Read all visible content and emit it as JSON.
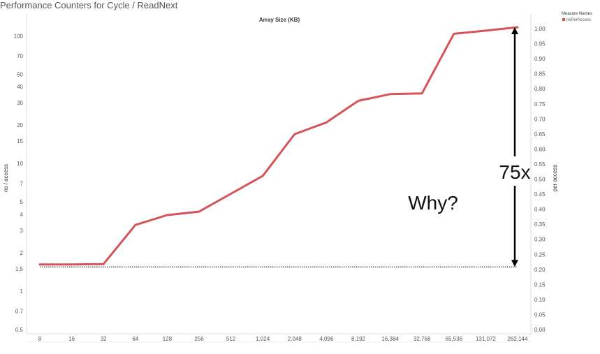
{
  "page_title": "Performance Counters for Cycle / ReadNext",
  "colors": {
    "series": "#d45457",
    "text": "#555555",
    "axis": "#dddddd",
    "annotation": "#111111"
  },
  "chart_data": {
    "type": "line",
    "title": "Performance Counters for Cycle / ReadNext",
    "xlabel": "Array Size (KB)",
    "ylabel": "ns / access",
    "y2label": "per access",
    "y_scale": "log",
    "ylim": [
      0.5,
      120
    ],
    "y2lim": [
      0,
      1.0
    ],
    "grid": false,
    "legend_position": "top-right",
    "legend_title": "Measure Names",
    "categories": [
      "8",
      "16",
      "32",
      "64",
      "128",
      "256",
      "512",
      "1,024",
      "2,048",
      "4,096",
      "8,192",
      "16,384",
      "32,768",
      "65,536",
      "131,072",
      "262,144"
    ],
    "y_ticks": [
      {
        "value": 100,
        "label": "100"
      },
      {
        "value": 70,
        "label": "70"
      },
      {
        "value": 50,
        "label": "50"
      },
      {
        "value": 40,
        "label": "40"
      },
      {
        "value": 30,
        "label": "30"
      },
      {
        "value": 20,
        "label": "20"
      },
      {
        "value": 15,
        "label": "15"
      },
      {
        "value": 10,
        "label": "10"
      },
      {
        "value": 7,
        "label": "7"
      },
      {
        "value": 5,
        "label": "5"
      },
      {
        "value": 4,
        "label": "4"
      },
      {
        "value": 3,
        "label": "3"
      },
      {
        "value": 2,
        "label": "2"
      },
      {
        "value": 1.5,
        "label": "1.5"
      },
      {
        "value": 1,
        "label": "1"
      },
      {
        "value": 0.7,
        "label": "0.7"
      },
      {
        "value": 0.5,
        "label": "0.5"
      }
    ],
    "y2_ticks": [
      "0.00",
      "0.05",
      "0.10",
      "0.15",
      "0.20",
      "0.25",
      "0.30",
      "0.35",
      "0.40",
      "0.45",
      "0.50",
      "0.55",
      "0.60",
      "0.65",
      "0.70",
      "0.75",
      "0.80",
      "0.85",
      "0.90",
      "0.95",
      "1.00"
    ],
    "series": [
      {
        "name": "nsPerAccess",
        "values": [
          1.62,
          1.62,
          1.63,
          3.3,
          3.95,
          4.2,
          5.8,
          8.0,
          17.0,
          21.0,
          31.0,
          35.0,
          35.5,
          104.0,
          110.0,
          117.0
        ]
      }
    ],
    "annotations": {
      "baseline_value": 1.55,
      "ratio_label": "75x",
      "question_label": "Why?"
    }
  }
}
